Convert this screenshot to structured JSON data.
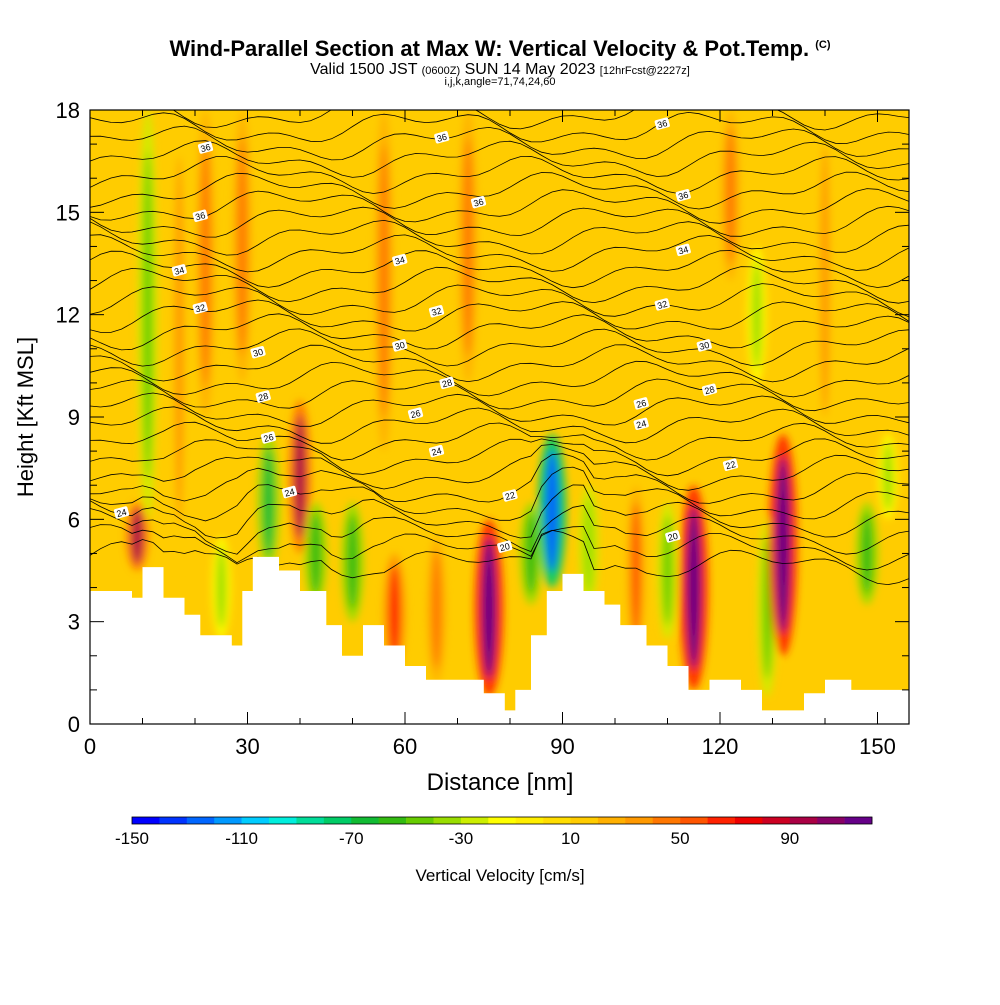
{
  "title": {
    "main": "Wind-Parallel Section at Max W: Vertical Velocity & Pot.Temp.",
    "copyright": "(C)",
    "valid_prefix": "Valid 1500 JST",
    "valid_utc": "(0600Z)",
    "valid_date": "SUN 14 May 2023",
    "forecast": "[12hrFcst@2227z]",
    "indices": "i,j,k,angle=71,74,24,60"
  },
  "chart_data": {
    "type": "heatmap",
    "xlabel": "Distance [nm]",
    "ylabel": "Height [Kft MSL]",
    "xlim": [
      0,
      156
    ],
    "ylim": [
      0,
      18
    ],
    "x_ticks": [
      0,
      30,
      60,
      90,
      120,
      150
    ],
    "y_ticks": [
      0,
      3,
      6,
      9,
      12,
      15,
      18
    ],
    "colorbar": {
      "label": "Vertical Velocity [cm/s]",
      "range": [
        -150,
        110
      ],
      "step": 10,
      "tick_labels": [
        -150,
        -110,
        -70,
        -30,
        10,
        50,
        90
      ],
      "colors": [
        "#0000ff",
        "#0033ff",
        "#0066ff",
        "#0099ff",
        "#00ccff",
        "#00eedd",
        "#00dd99",
        "#00cc66",
        "#11bb33",
        "#33bb11",
        "#66cc00",
        "#99dd00",
        "#ccee00",
        "#ffff00",
        "#ffee00",
        "#ffdd00",
        "#ffcc00",
        "#ffb000",
        "#ff9900",
        "#ff7700",
        "#ff5500",
        "#ff2200",
        "#ee0000",
        "#cc0022",
        "#aa0044",
        "#880066",
        "#660088"
      ]
    },
    "background_w": 15,
    "vertical_velocity_cells": [
      {
        "x": 9,
        "z1": 4.5,
        "z2": 6.5,
        "w": 90
      },
      {
        "x": 11,
        "z1": 6.0,
        "z2": 18,
        "w": -50
      },
      {
        "x": 17,
        "z1": 4.5,
        "z2": 18,
        "w": 35
      },
      {
        "x": 22,
        "z1": 9.0,
        "z2": 18,
        "w": 45
      },
      {
        "x": 25,
        "z1": 2.5,
        "z2": 5.5,
        "w": -35
      },
      {
        "x": 29,
        "z1": 10.0,
        "z2": 18,
        "w": 40
      },
      {
        "x": 34,
        "z1": 4.5,
        "z2": 8.5,
        "w": -70
      },
      {
        "x": 40,
        "z1": 5.0,
        "z2": 9.5,
        "w": 90
      },
      {
        "x": 43,
        "z1": 3.5,
        "z2": 6.5,
        "w": -60
      },
      {
        "x": 50,
        "z1": 3.0,
        "z2": 6.5,
        "w": -55
      },
      {
        "x": 56,
        "z1": 8.0,
        "z2": 18,
        "w": 40
      },
      {
        "x": 58,
        "z1": 1.5,
        "z2": 5.0,
        "w": 60
      },
      {
        "x": 66,
        "z1": 1.2,
        "z2": 5.5,
        "w": 45
      },
      {
        "x": 72,
        "z1": 10.0,
        "z2": 18,
        "w": 40
      },
      {
        "x": 76,
        "z1": 0.8,
        "z2": 6.0,
        "w": 110
      },
      {
        "x": 84,
        "z1": 3.5,
        "z2": 6.5,
        "w": -60
      },
      {
        "x": 88,
        "z1": 4.0,
        "z2": 8.5,
        "w": -130
      },
      {
        "x": 95,
        "z1": 3.5,
        "z2": 7.0,
        "w": -40
      },
      {
        "x": 104,
        "z1": 2.0,
        "z2": 7.0,
        "w": 50
      },
      {
        "x": 110,
        "z1": 2.5,
        "z2": 6.5,
        "w": -45
      },
      {
        "x": 115,
        "z1": 1.0,
        "z2": 7.0,
        "w": 110
      },
      {
        "x": 122,
        "z1": 13.0,
        "z2": 18,
        "w": 45
      },
      {
        "x": 127,
        "z1": 10.0,
        "z2": 14,
        "w": -35
      },
      {
        "x": 129,
        "z1": 0.8,
        "z2": 6.0,
        "w": -50
      },
      {
        "x": 132,
        "z1": 2.0,
        "z2": 8.5,
        "w": 110
      },
      {
        "x": 140,
        "z1": 8.0,
        "z2": 18,
        "w": 30
      },
      {
        "x": 148,
        "z1": 3.5,
        "z2": 6.5,
        "w": -55
      },
      {
        "x": 152,
        "z1": 6.0,
        "z2": 8.5,
        "w": -35
      }
    ],
    "terrain": [
      [
        0,
        3.9
      ],
      [
        8,
        3.9
      ],
      [
        8,
        3.7
      ],
      [
        10,
        3.7
      ],
      [
        10,
        4.6
      ],
      [
        14,
        4.6
      ],
      [
        14,
        3.7
      ],
      [
        18,
        3.7
      ],
      [
        18,
        3.2
      ],
      [
        21,
        3.2
      ],
      [
        21,
        2.6
      ],
      [
        27,
        2.6
      ],
      [
        27,
        2.3
      ],
      [
        29,
        2.3
      ],
      [
        29,
        3.9
      ],
      [
        31,
        3.9
      ],
      [
        31,
        4.9
      ],
      [
        36,
        4.9
      ],
      [
        36,
        4.5
      ],
      [
        40,
        4.5
      ],
      [
        40,
        3.9
      ],
      [
        45,
        3.9
      ],
      [
        45,
        2.9
      ],
      [
        48,
        2.9
      ],
      [
        48,
        2.0
      ],
      [
        52,
        2.0
      ],
      [
        52,
        2.9
      ],
      [
        56,
        2.9
      ],
      [
        56,
        2.3
      ],
      [
        60,
        2.3
      ],
      [
        60,
        1.7
      ],
      [
        64,
        1.7
      ],
      [
        64,
        1.3
      ],
      [
        70,
        1.3
      ],
      [
        70,
        1.3
      ],
      [
        75,
        1.3
      ],
      [
        75,
        0.9
      ],
      [
        79,
        0.9
      ],
      [
        79,
        0.4
      ],
      [
        81,
        0.4
      ],
      [
        81,
        1.0
      ],
      [
        84,
        1.0
      ],
      [
        84,
        2.6
      ],
      [
        87,
        2.6
      ],
      [
        87,
        3.9
      ],
      [
        90,
        3.9
      ],
      [
        90,
        4.4
      ],
      [
        94,
        4.4
      ],
      [
        94,
        3.9
      ],
      [
        98,
        3.9
      ],
      [
        98,
        3.5
      ],
      [
        101,
        3.5
      ],
      [
        101,
        2.9
      ],
      [
        106,
        2.9
      ],
      [
        106,
        2.3
      ],
      [
        110,
        2.3
      ],
      [
        110,
        1.7
      ],
      [
        114,
        1.7
      ],
      [
        114,
        1.0
      ],
      [
        118,
        1.0
      ],
      [
        118,
        1.3
      ],
      [
        124,
        1.3
      ],
      [
        124,
        1.0
      ],
      [
        128,
        1.0
      ],
      [
        128,
        0.4
      ],
      [
        136,
        0.4
      ],
      [
        136,
        0.9
      ],
      [
        140,
        0.9
      ],
      [
        140,
        1.3
      ],
      [
        145,
        1.3
      ],
      [
        145,
        1.0
      ],
      [
        150,
        1.0
      ],
      [
        150,
        1.0
      ],
      [
        156,
        1.0
      ]
    ],
    "isentrope_labels": [
      {
        "x": 22,
        "z": 16.9,
        "text": "36"
      },
      {
        "x": 67,
        "z": 17.2,
        "text": "36"
      },
      {
        "x": 109,
        "z": 17.6,
        "text": "36"
      },
      {
        "x": 21,
        "z": 14.9,
        "text": "36"
      },
      {
        "x": 74,
        "z": 15.3,
        "text": "36"
      },
      {
        "x": 113,
        "z": 15.5,
        "text": "36"
      },
      {
        "x": 17,
        "z": 13.3,
        "text": "34"
      },
      {
        "x": 59,
        "z": 13.6,
        "text": "34"
      },
      {
        "x": 113,
        "z": 13.9,
        "text": "34"
      },
      {
        "x": 21,
        "z": 12.2,
        "text": "32"
      },
      {
        "x": 66,
        "z": 12.1,
        "text": "32"
      },
      {
        "x": 109,
        "z": 12.3,
        "text": "32"
      },
      {
        "x": 32,
        "z": 10.9,
        "text": "30"
      },
      {
        "x": 59,
        "z": 11.1,
        "text": "30"
      },
      {
        "x": 117,
        "z": 11.1,
        "text": "30"
      },
      {
        "x": 33,
        "z": 9.6,
        "text": "28"
      },
      {
        "x": 68,
        "z": 10.0,
        "text": "28"
      },
      {
        "x": 118,
        "z": 9.8,
        "text": "28"
      },
      {
        "x": 34,
        "z": 8.4,
        "text": "26"
      },
      {
        "x": 62,
        "z": 9.1,
        "text": "26"
      },
      {
        "x": 105,
        "z": 9.4,
        "text": "26"
      },
      {
        "x": 66,
        "z": 8.0,
        "text": "24"
      },
      {
        "x": 105,
        "z": 8.8,
        "text": "24"
      },
      {
        "x": 38,
        "z": 6.8,
        "text": "24"
      },
      {
        "x": 6,
        "z": 6.2,
        "text": "24"
      },
      {
        "x": 80,
        "z": 6.7,
        "text": "22"
      },
      {
        "x": 122,
        "z": 7.6,
        "text": "22"
      },
      {
        "x": 79,
        "z": 5.2,
        "text": "20"
      },
      {
        "x": 111,
        "z": 5.5,
        "text": "20"
      }
    ]
  }
}
